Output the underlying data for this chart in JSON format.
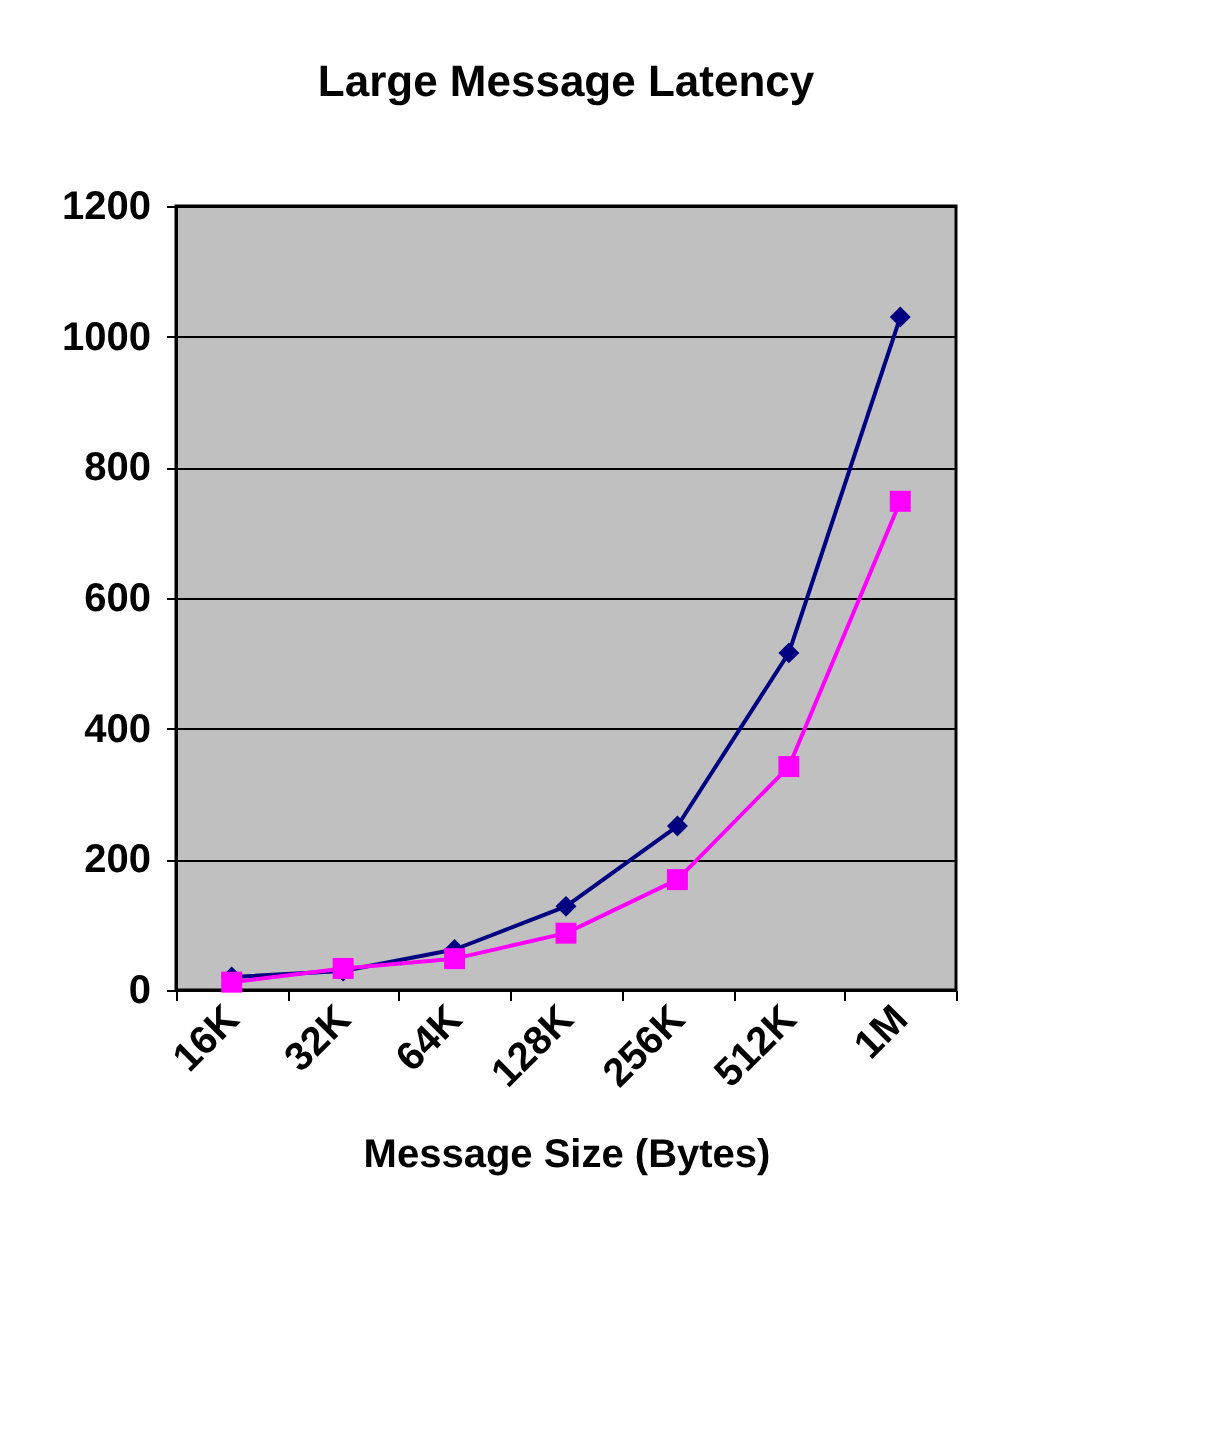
{
  "chart_data": {
    "type": "line",
    "title": "Large Message Latency",
    "xlabel": "Message Size (Bytes)",
    "categories": [
      "16K",
      "32K",
      "64K",
      "128K",
      "256K",
      "512K",
      "1M"
    ],
    "series": [
      {
        "color": "#000080",
        "marker": "diamond",
        "values": [
          20,
          29,
          62,
          128,
          251,
          516,
          1030
        ]
      },
      {
        "color": "#ff00ff",
        "marker": "square",
        "values": [
          12,
          33,
          48,
          87,
          169,
          342,
          748
        ]
      }
    ],
    "ylim": [
      0,
      1200
    ],
    "yticks": [
      0,
      200,
      400,
      600,
      800,
      1000,
      1200
    ],
    "grid": "y",
    "legend": false,
    "line_style": "solid"
  }
}
